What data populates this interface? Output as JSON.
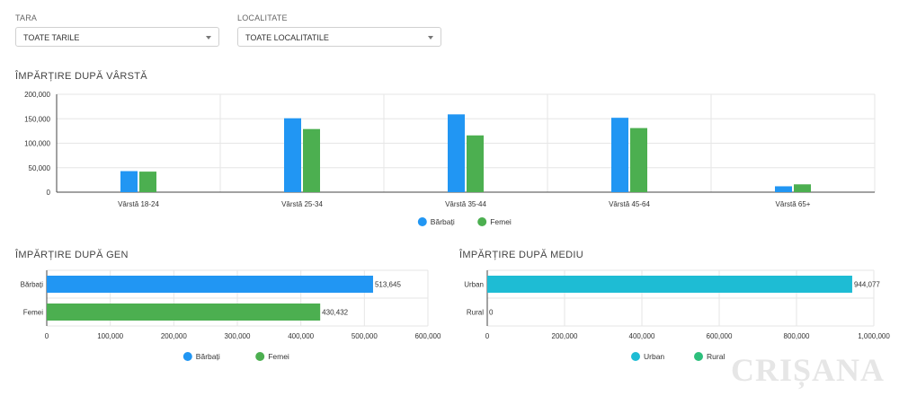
{
  "filters": {
    "country": {
      "label": "TARA",
      "value": "TOATE TARILE"
    },
    "locality": {
      "label": "LOCALITATE",
      "value": "TOATE LOCALITATILE"
    }
  },
  "watermark": "CRIȘANA",
  "colors": {
    "blue": "#2196f3",
    "green": "#4caf50",
    "teal": "#1ebcd4",
    "rural": "#2dbf7c"
  },
  "chart_data": [
    {
      "type": "bar",
      "title": "ÎMPĂRȚIRE DUPĂ VÂRSTĂ",
      "categories": [
        "Vârstă 18-24",
        "Vârstă 25-34",
        "Vârstă 35-44",
        "Vârstă 45-64",
        "Vârstă 65+"
      ],
      "series": [
        {
          "name": "Bărbați",
          "values": [
            43000,
            151000,
            159000,
            152000,
            12000
          ]
        },
        {
          "name": "Femei",
          "values": [
            42000,
            129000,
            116000,
            131000,
            16000
          ]
        }
      ],
      "ylim": [
        0,
        200000
      ],
      "yticks": [
        "0",
        "50,000",
        "100,000",
        "150,000",
        "200,000"
      ],
      "legend": "bottom"
    },
    {
      "type": "bar",
      "orientation": "horizontal",
      "title": "ÎMPĂRȚIRE DUPĂ GEN",
      "categories": [
        "Bărbați",
        "Femei"
      ],
      "values": [
        513645,
        430432
      ],
      "value_labels": [
        "513,645",
        "430,432"
      ],
      "xlim": [
        0,
        600000
      ],
      "xticks": [
        "0",
        "100,000",
        "200,000",
        "300,000",
        "400,000",
        "500,000",
        "600,000"
      ],
      "legend_items": [
        "Bărbați",
        "Femei"
      ],
      "legend": "bottom"
    },
    {
      "type": "bar",
      "orientation": "horizontal",
      "title": "ÎMPĂRȚIRE DUPĂ MEDIU",
      "categories": [
        "Urban",
        "Rural"
      ],
      "values": [
        944077,
        0
      ],
      "value_labels": [
        "944,077",
        "0"
      ],
      "xlim": [
        0,
        1000000
      ],
      "xticks": [
        "0",
        "200,000",
        "400,000",
        "600,000",
        "800,000",
        "1,000,000"
      ],
      "legend_items": [
        "Urban",
        "Rural"
      ],
      "legend": "bottom"
    }
  ]
}
